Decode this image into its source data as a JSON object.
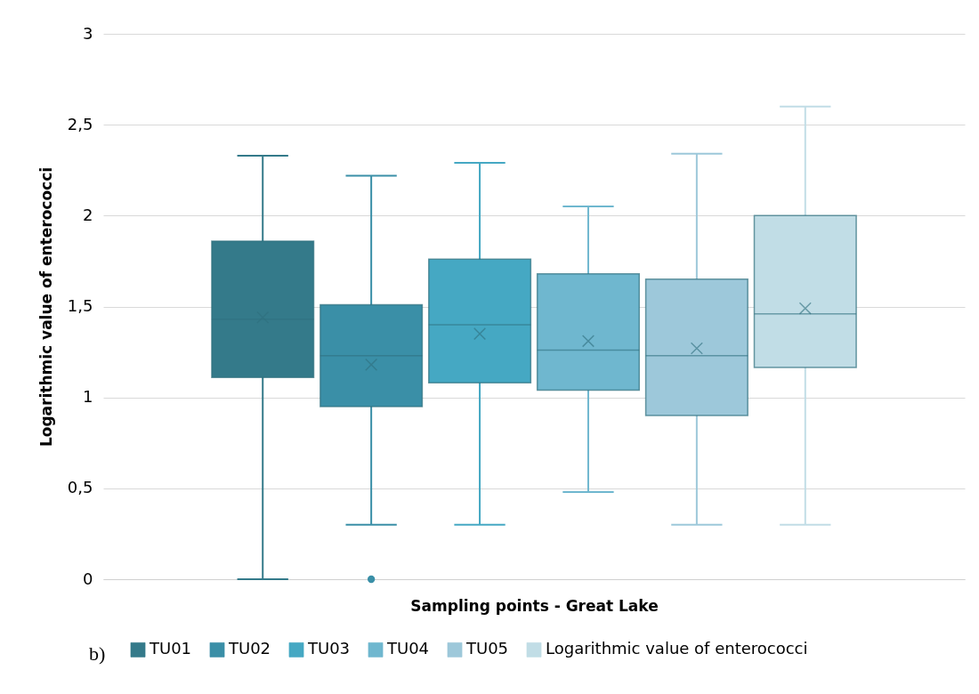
{
  "chart_data": {
    "type": "box",
    "xlabel": "Sampling points - Great Lake",
    "ylabel": "Logarithmic value of enterococci",
    "categories": [
      null
    ],
    "ylim": [
      0,
      3
    ],
    "yticks": [
      0,
      {
        "value": 0.5,
        "label": "0,5"
      },
      1,
      {
        "value": 1.5,
        "label": "1,5"
      },
      2,
      {
        "value": 2.5,
        "label": "2,5"
      },
      3
    ],
    "grid": "y",
    "legend": "bottom",
    "annotations": [
      "b)"
    ],
    "series": [
      {
        "name": "TU01",
        "color": "#347a8a",
        "boxes": [
          {
            "low": 0,
            "q1": 1.11,
            "median": 1.43,
            "q3": 1.86,
            "high": 2.33,
            "mean": 1.44
          }
        ]
      },
      {
        "name": "TU02",
        "color": "#3a8fa7",
        "boxes": [
          {
            "low": 0.3,
            "q1": 0.95,
            "median": 1.23,
            "q3": 1.51,
            "high": 2.22,
            "mean": 1.18,
            "outliers": [
              0
            ]
          }
        ]
      },
      {
        "name": "TU03",
        "color": "#45a8c3",
        "boxes": [
          {
            "low": 0.3,
            "q1": 1.08,
            "median": 1.4,
            "q3": 1.76,
            "high": 2.29,
            "mean": 1.35
          }
        ]
      },
      {
        "name": "TU04",
        "color": "#6fb7cf",
        "boxes": [
          {
            "low": 0.48,
            "q1": 1.04,
            "median": 1.26,
            "q3": 1.68,
            "high": 2.05,
            "mean": 1.31
          }
        ]
      },
      {
        "name": "TU05",
        "color": "#9dc8da",
        "boxes": [
          {
            "low": 0.3,
            "q1": 0.9,
            "median": 1.23,
            "q3": 1.65,
            "high": 2.34,
            "mean": 1.27
          }
        ]
      },
      {
        "name": "Logarithmic value of enterococci",
        "color": "#c1dde6",
        "boxes": [
          {
            "low": 0.3,
            "q1": 1.165,
            "median": 1.46,
            "q3": 2.0,
            "high": 2.6,
            "mean": 1.49
          }
        ]
      }
    ]
  }
}
